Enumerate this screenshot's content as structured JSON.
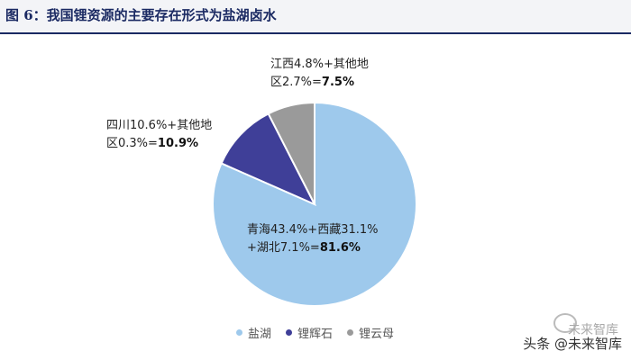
{
  "header": {
    "title": "图 6：我国锂资源的主要存在形式为盐湖卤水"
  },
  "chart_data": {
    "type": "pie",
    "title": "",
    "slices": [
      {
        "name": "盐湖",
        "value": 81.6,
        "color": "#9ec9ec"
      },
      {
        "name": "锂辉石",
        "value": 10.9,
        "color": "#3f3f98"
      },
      {
        "name": "锂云母",
        "value": 7.5,
        "color": "#9a9a9a"
      }
    ],
    "annotations": {
      "salt_lake": {
        "line1": "青海43.4%+西藏31.1%",
        "line2_prefix": "+湖北7.1%=",
        "total": "81.6%"
      },
      "spodumene": {
        "line1": "四川10.6%+其他地",
        "line2_prefix": "区0.3%=",
        "total": "10.9%"
      },
      "lepidolite": {
        "line1": "江西4.8%+其他地",
        "line2_prefix": "区2.7%=",
        "total": "7.5%"
      }
    },
    "legend_placement": "bottom"
  },
  "watermark": {
    "text": "头条 @未来智库",
    "faint": "未来智库"
  }
}
